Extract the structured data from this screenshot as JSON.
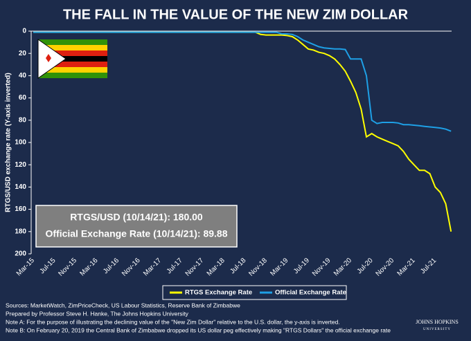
{
  "chart_data": {
    "type": "line",
    "title": "THE FALL IN THE VALUE OF THE NEW ZIM DOLLAR",
    "y_label": "RTGS/USD exchange rate (Y-axis inverted)",
    "x": [
      "Mar-15",
      null,
      null,
      null,
      "Jul-15",
      null,
      null,
      null,
      "Nov-15",
      null,
      null,
      null,
      "Mar-16",
      null,
      null,
      null,
      "Jul-16",
      null,
      null,
      null,
      "Nov-16",
      null,
      null,
      null,
      "Mar-17",
      null,
      null,
      null,
      "Jul-17",
      null,
      null,
      null,
      "Nov-17",
      null,
      null,
      null,
      "Mar-18",
      null,
      null,
      null,
      "Jul-18",
      null,
      null,
      null,
      "Nov-18",
      null,
      null,
      null,
      "Mar-19",
      null,
      null,
      null,
      "Jul-19",
      null,
      null,
      null,
      "Nov-19",
      null,
      null,
      null,
      "Mar-20",
      null,
      null,
      null,
      "Jul-20",
      null,
      null,
      null,
      "Nov-20",
      null,
      null,
      null,
      "Mar-21",
      null,
      null,
      null,
      "Jul-21",
      null,
      null,
      null
    ],
    "series": [
      {
        "name": "RTGS Exchange Rate",
        "color": "#ffff00",
        "values": [
          1,
          1,
          1,
          1,
          1,
          1,
          1,
          1,
          1,
          1,
          1,
          1,
          1,
          1,
          1,
          1,
          1,
          1,
          1,
          1,
          1,
          1,
          1,
          1,
          1,
          1,
          1,
          1,
          1,
          1,
          1,
          1,
          1,
          1,
          1,
          1,
          1,
          1,
          1,
          1,
          1,
          1,
          1,
          3,
          3.5,
          3.5,
          3.5,
          3.5,
          4,
          5,
          8,
          12,
          16,
          17,
          19,
          20,
          22,
          25,
          30,
          36,
          45,
          55,
          70,
          95,
          92,
          95,
          97,
          99,
          101,
          103,
          108,
          115,
          120,
          125,
          125,
          128,
          140,
          145,
          155,
          180
        ]
      },
      {
        "name": "Official Exchange Rate",
        "color": "#1ea0e6",
        "values": [
          1,
          1,
          1,
          1,
          1,
          1,
          1,
          1,
          1,
          1,
          1,
          1,
          1,
          1,
          1,
          1,
          1,
          1,
          1,
          1,
          1,
          1,
          1,
          1,
          1,
          1,
          1,
          1,
          1,
          1,
          1,
          1,
          1,
          1,
          1,
          1,
          1,
          1,
          1,
          1,
          1,
          1,
          1,
          1,
          1,
          1,
          1,
          2.5,
          2.5,
          3,
          5,
          8,
          10,
          12,
          14,
          15,
          15.5,
          16,
          16,
          16.5,
          25,
          25,
          25,
          40,
          80,
          83,
          82,
          82,
          82,
          82.5,
          84,
          84,
          84.5,
          85,
          85.5,
          86,
          86.5,
          87,
          88,
          89.88
        ]
      }
    ],
    "ylim": [
      0,
      200
    ],
    "yticks": [
      0,
      20,
      40,
      60,
      80,
      100,
      120,
      140,
      160,
      180,
      200
    ],
    "y_inverted": true,
    "annotations": [
      "RTGS/USD (10/14/21): 180.00",
      "Official Exchange Rate (10/14/21): 89.88"
    ],
    "legend": "bottom"
  },
  "footer": {
    "notes": [
      "Sources: MarketWatch, ZimPriceCheck, US Labour Statistics, Reserve Bank of Zimbabwe",
      "Prepared by Professor Steve H. Hanke, The Johns Hopkins University",
      "Note A: For the purpose of illustrating the declining value of the \"New Zim Dollar\" relative to the U.S. dollar, the y-axis is inverted.",
      "Note B: On February 20, 2019 the Central Bank of Zimbabwe dropped its US dollar peg effectively making \"RTGS Dollars\" the official exchange rate"
    ],
    "logo": [
      "JOHNS HOPKINS",
      "UNIVERSITY"
    ]
  }
}
